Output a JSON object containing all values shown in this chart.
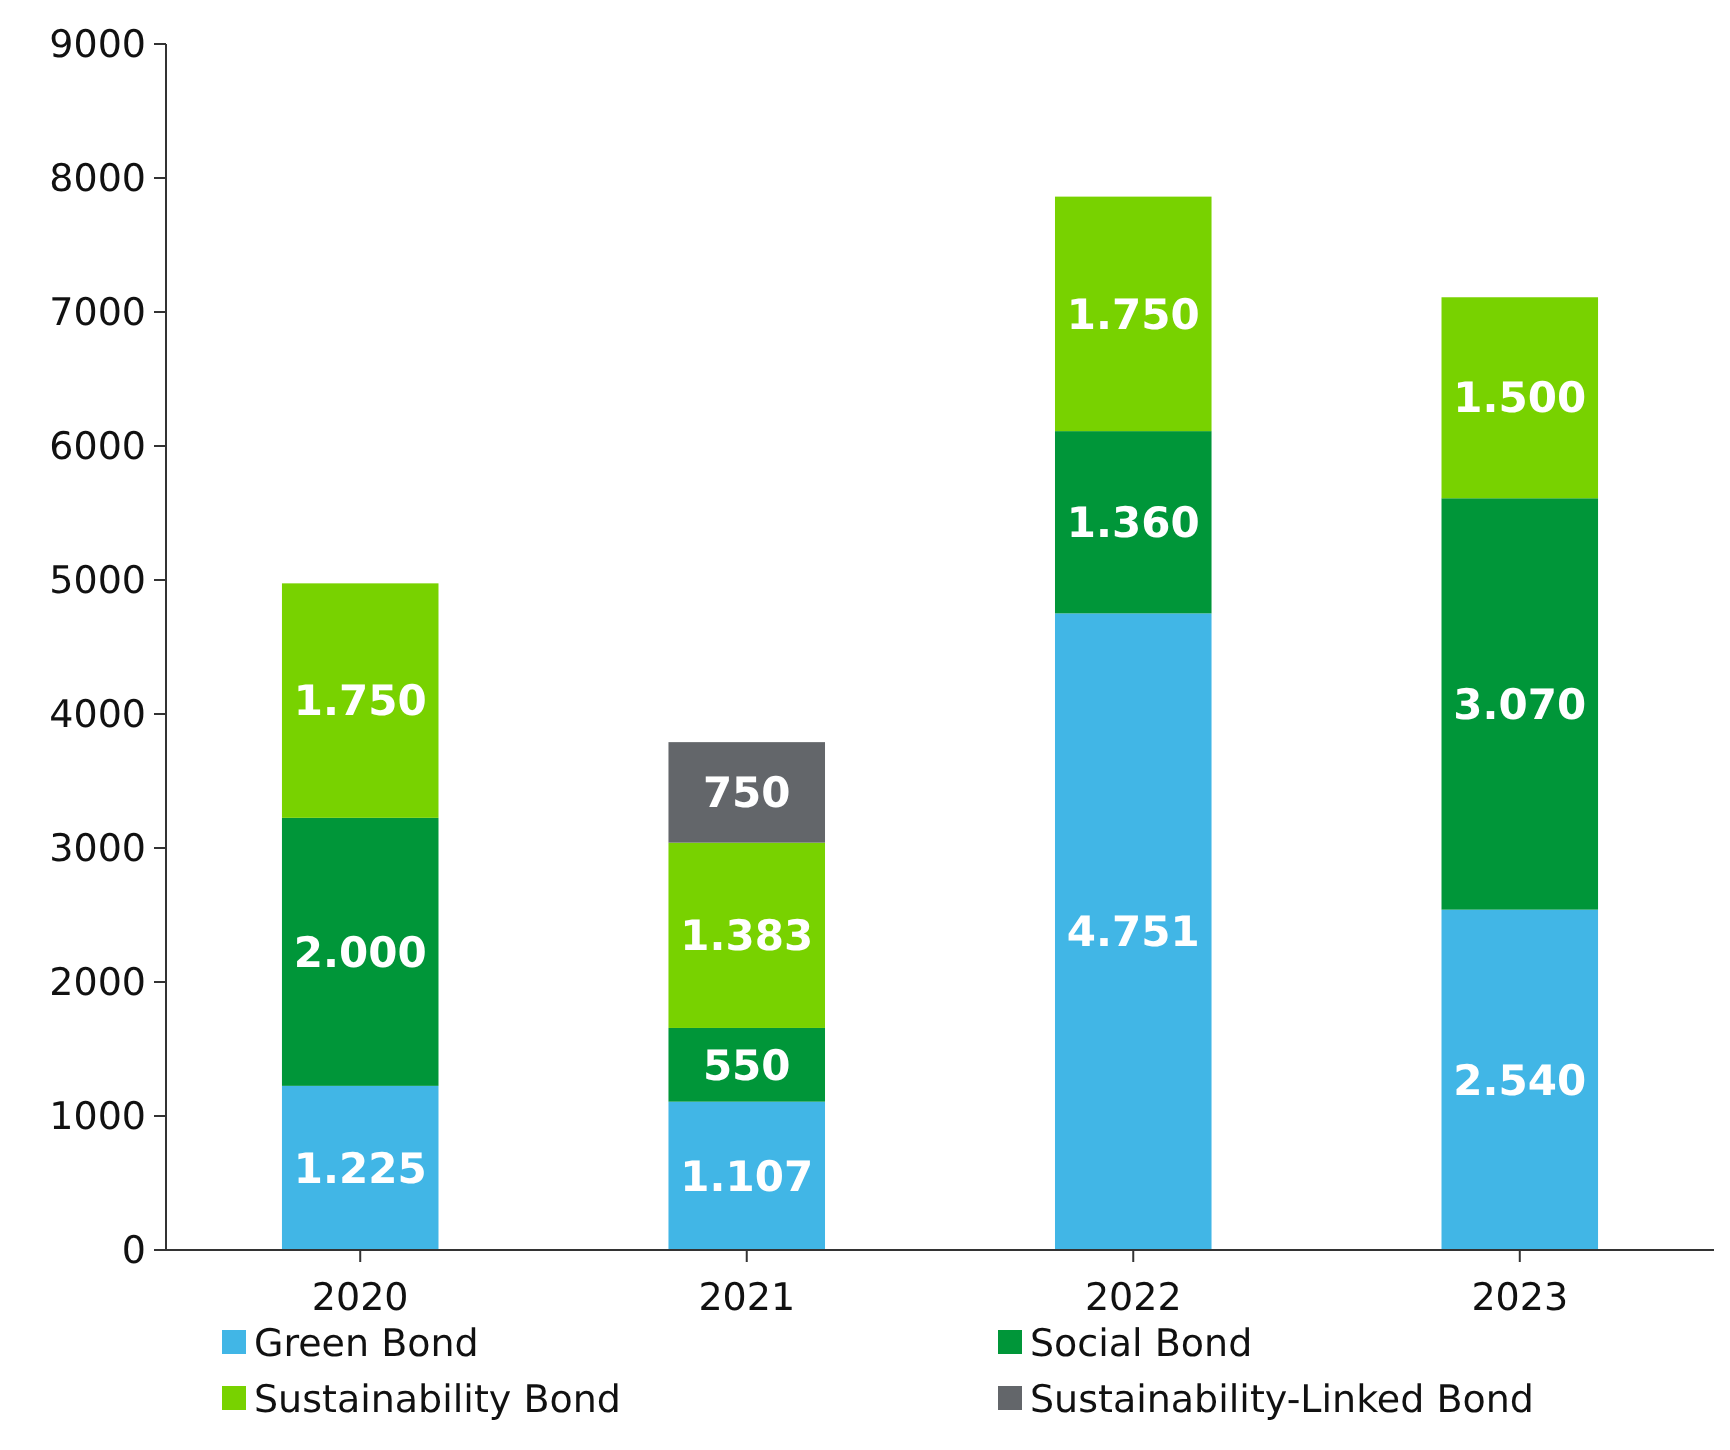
{
  "chart_data": {
    "type": "bar",
    "stacked": true,
    "categories": [
      "2020",
      "2021",
      "2022",
      "2023"
    ],
    "series": [
      {
        "name": "Green Bond",
        "color": "#41b6e6",
        "values": [
          1225,
          1107,
          4751,
          2540
        ],
        "value_labels": [
          "1.225",
          "1.107",
          "4.751",
          "2.540"
        ]
      },
      {
        "name": "Social Bond",
        "color": "#009639",
        "values": [
          2000,
          550,
          1360,
          3070
        ],
        "value_labels": [
          "2.000",
          "550",
          "1.360",
          "3.070"
        ]
      },
      {
        "name": "Sustainability Bond",
        "color": "#78d200",
        "values": [
          1750,
          1383,
          1750,
          1500
        ],
        "value_labels": [
          "1.750",
          "1.383",
          "1.750",
          "1.500"
        ]
      },
      {
        "name": "Sustainability-Linked Bond",
        "color": "#63666a",
        "values": [
          null,
          750,
          null,
          null
        ],
        "value_labels": [
          null,
          "750",
          null,
          null
        ]
      }
    ],
    "ylim": [
      0,
      9000
    ],
    "yticks": [
      0,
      1000,
      2000,
      3000,
      4000,
      5000,
      6000,
      7000,
      8000,
      9000
    ],
    "grid": false,
    "legend": "bottom"
  }
}
